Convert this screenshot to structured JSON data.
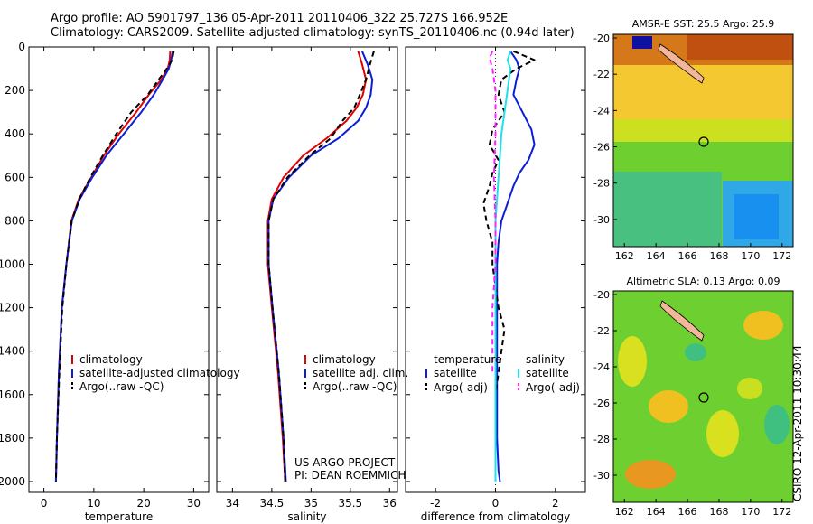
{
  "header": {
    "line1": "Argo profile: AO 5901797_136 05-Apr-2011 20110406_322 25.727S 166.952E",
    "line2": "Climatology: CARS2009. Satellite-adjusted climatology: synTS_20110406.nc (0.94d later)"
  },
  "side_label": "CSIRO 12-Apr-2011 10:30:44",
  "credits": {
    "line1": "US ARGO PROJECT",
    "line2": "PI: DEAN ROEMMICH"
  },
  "colors": {
    "climatology": "#e00000",
    "satellite": "#0a1ed8",
    "argo": "#000000",
    "sal_satellite": "#20e0e8",
    "sal_argo": "#ff20ff",
    "coast": "#f2b79a"
  },
  "chart_data": [
    {
      "type": "line",
      "id": "temperature-profile",
      "xlabel": "temperature",
      "ylabel": "",
      "xlim": [
        -3,
        33
      ],
      "ylim": [
        2050,
        0
      ],
      "xticks": [
        0,
        10,
        20,
        30
      ],
      "yticks": [
        0,
        200,
        400,
        600,
        800,
        1000,
        1200,
        1400,
        1600,
        1800,
        2000
      ],
      "ytick_labels": [
        "0",
        "200",
        "400",
        "600",
        "800",
        "1000",
        "1200",
        "1400",
        "1600",
        "1800",
        "2000"
      ],
      "legend": {
        "position": "lower-right",
        "entries": [
          "climatology",
          "satellite-adjusted climatology",
          "Argo(..raw -QC)"
        ]
      },
      "series": [
        {
          "name": "climatology",
          "color": "#e00000",
          "dash": "",
          "x": [
            25.3,
            25.2,
            24.8,
            23.5,
            21.0,
            18.5,
            15.0,
            12.0,
            9.5,
            7.0,
            5.5,
            4.5,
            3.6,
            3.0,
            2.6,
            2.4
          ],
          "y": [
            20,
            60,
            100,
            150,
            220,
            300,
            400,
            500,
            600,
            700,
            800,
            1000,
            1200,
            1500,
            1800,
            2000
          ]
        },
        {
          "name": "satellite-adjusted climatology",
          "color": "#0a1ed8",
          "dash": "",
          "x": [
            25.8,
            25.5,
            25.0,
            23.8,
            22.0,
            19.5,
            16.0,
            12.5,
            9.7,
            7.2,
            5.6,
            4.5,
            3.6,
            3.0,
            2.6,
            2.4
          ],
          "y": [
            20,
            60,
            100,
            150,
            220,
            300,
            400,
            500,
            600,
            700,
            800,
            1000,
            1200,
            1500,
            1800,
            2000
          ]
        },
        {
          "name": "Argo(..raw -QC)",
          "color": "#000000",
          "dash": "6,4",
          "x": [
            26.0,
            25.7,
            24.6,
            23.0,
            20.8,
            17.5,
            14.5,
            11.8,
            9.3,
            7.1,
            5.6,
            4.5,
            3.7,
            3.1,
            2.6,
            2.4
          ],
          "y": [
            20,
            60,
            100,
            150,
            220,
            300,
            400,
            500,
            600,
            700,
            800,
            1000,
            1200,
            1500,
            1800,
            2000
          ]
        }
      ]
    },
    {
      "type": "line",
      "id": "salinity-profile",
      "xlabel": "salinity",
      "ylabel": "",
      "xlim": [
        33.8,
        36.1
      ],
      "ylim": [
        2050,
        0
      ],
      "xticks": [
        34,
        34.5,
        35,
        35.5,
        36
      ],
      "yticks": [
        0,
        200,
        400,
        600,
        800,
        1000,
        1200,
        1400,
        1600,
        1800,
        2000
      ],
      "legend": {
        "position": "lower-right",
        "entries": [
          "climatology",
          "satellite adj. clim.",
          "Argo(..raw -QC)"
        ]
      },
      "series": [
        {
          "name": "climatology",
          "color": "#e00000",
          "dash": "",
          "x": [
            35.6,
            35.65,
            35.7,
            35.66,
            35.58,
            35.45,
            35.2,
            34.9,
            34.65,
            34.5,
            34.45,
            34.45,
            34.5,
            34.58,
            34.64,
            34.67
          ],
          "y": [
            20,
            80,
            150,
            220,
            280,
            340,
            420,
            500,
            600,
            700,
            800,
            1000,
            1200,
            1500,
            1800,
            2000
          ]
        },
        {
          "name": "satellite adj. clim.",
          "color": "#0a1ed8",
          "dash": "",
          "x": [
            35.65,
            35.72,
            35.78,
            35.76,
            35.7,
            35.6,
            35.35,
            35.0,
            34.72,
            34.52,
            34.46,
            34.46,
            34.51,
            34.59,
            34.65,
            34.68
          ],
          "y": [
            20,
            80,
            150,
            220,
            280,
            340,
            420,
            500,
            600,
            700,
            800,
            1000,
            1200,
            1500,
            1800,
            2000
          ]
        },
        {
          "name": "Argo(..raw -QC)",
          "color": "#000000",
          "dash": "6,4",
          "x": [
            35.8,
            35.75,
            35.7,
            35.62,
            35.55,
            35.4,
            35.25,
            34.98,
            34.7,
            34.52,
            34.46,
            34.46,
            34.51,
            34.59,
            34.65,
            34.67
          ],
          "y": [
            20,
            80,
            150,
            220,
            280,
            340,
            420,
            500,
            600,
            700,
            800,
            1000,
            1200,
            1500,
            1800,
            2000
          ]
        }
      ]
    },
    {
      "type": "line",
      "id": "difference-profile",
      "xlabel": "difference from climatology",
      "ylabel": "",
      "xlim": [
        -3,
        3
      ],
      "ylim": [
        2050,
        0
      ],
      "xticks": [
        -2,
        0,
        2
      ],
      "yticks": [
        0,
        200,
        400,
        600,
        800,
        1000,
        1200,
        1400,
        1600,
        1800,
        2000
      ],
      "legend": {
        "position": "lower-right",
        "groups": [
          "temperature",
          "salinity"
        ],
        "entries": [
          "satellite",
          "Argo(-adj)",
          "satellite",
          "Argo(-adj)"
        ]
      },
      "series": [
        {
          "name": "satellite",
          "group": "temperature",
          "color": "#0a1ed8",
          "dash": "",
          "x": [
            0.5,
            0.7,
            0.8,
            0.7,
            0.6,
            0.9,
            1.2,
            1.3,
            1.1,
            0.8,
            0.6,
            0.4,
            0.2,
            0.1,
            0.05,
            0.05,
            0.05,
            0.05,
            0.1,
            0.15
          ],
          "y": [
            20,
            60,
            100,
            150,
            220,
            300,
            380,
            450,
            520,
            580,
            640,
            720,
            800,
            900,
            1000,
            1200,
            1500,
            1800,
            1950,
            2000
          ]
        },
        {
          "name": "Argo(-adj)",
          "group": "temperature",
          "color": "#000000",
          "dash": "6,4",
          "x": [
            0.6,
            1.3,
            0.7,
            0.2,
            0.1,
            0.3,
            -0.1,
            -0.2,
            0.1,
            -0.1,
            -0.2,
            -0.4,
            -0.3,
            -0.1,
            -0.1,
            0.1,
            0.3,
            0.2,
            0.1,
            0.0
          ],
          "y": [
            20,
            60,
            100,
            150,
            220,
            300,
            380,
            450,
            520,
            580,
            640,
            720,
            800,
            900,
            1000,
            1200,
            1300,
            1400,
            1500,
            1600
          ]
        },
        {
          "name": "satellite",
          "group": "salinity",
          "color": "#20e0e8",
          "dash": "",
          "x": [
            0.5,
            0.4,
            0.5,
            0.4,
            0.3,
            0.2,
            0.15,
            0.1,
            0.05,
            0.0,
            0.0,
            0.0,
            0.0,
            0.0
          ],
          "y": [
            20,
            60,
            100,
            200,
            300,
            400,
            500,
            600,
            700,
            800,
            1000,
            1400,
            1800,
            2000
          ]
        },
        {
          "name": "Argo(-adj)",
          "group": "salinity",
          "color": "#ff20ff",
          "dash": "6,4",
          "x": [
            -0.1,
            -0.2,
            -0.1,
            0.0,
            0.0,
            -0.05,
            0.0,
            0.0,
            -0.1,
            -0.1,
            -0.1,
            -0.1
          ],
          "y": [
            20,
            50,
            100,
            200,
            400,
            600,
            800,
            1000,
            1200,
            1300,
            1400,
            1500
          ]
        }
      ]
    },
    {
      "type": "heatmap",
      "id": "sst-map",
      "title": "AMSR-E SST: 25.5  Argo: 25.9",
      "xlim": [
        161.3,
        172.7
      ],
      "ylim": [
        -31.5,
        -19.8
      ],
      "xticks": [
        162,
        164,
        166,
        168,
        170,
        172
      ],
      "yticks": [
        -20,
        -22,
        -24,
        -26,
        -28,
        -30
      ],
      "float_position": {
        "lon": 166.952,
        "lat": -25.727
      }
    },
    {
      "type": "heatmap",
      "id": "sla-map",
      "title": "Altimetric SLA: 0.13  Argo: 0.09",
      "xlim": [
        161.3,
        172.7
      ],
      "ylim": [
        -31.5,
        -19.8
      ],
      "xticks": [
        162,
        164,
        166,
        168,
        170,
        172
      ],
      "yticks": [
        -20,
        -22,
        -24,
        -26,
        -28,
        -30
      ],
      "float_position": {
        "lon": 166.952,
        "lat": -25.727
      }
    }
  ]
}
